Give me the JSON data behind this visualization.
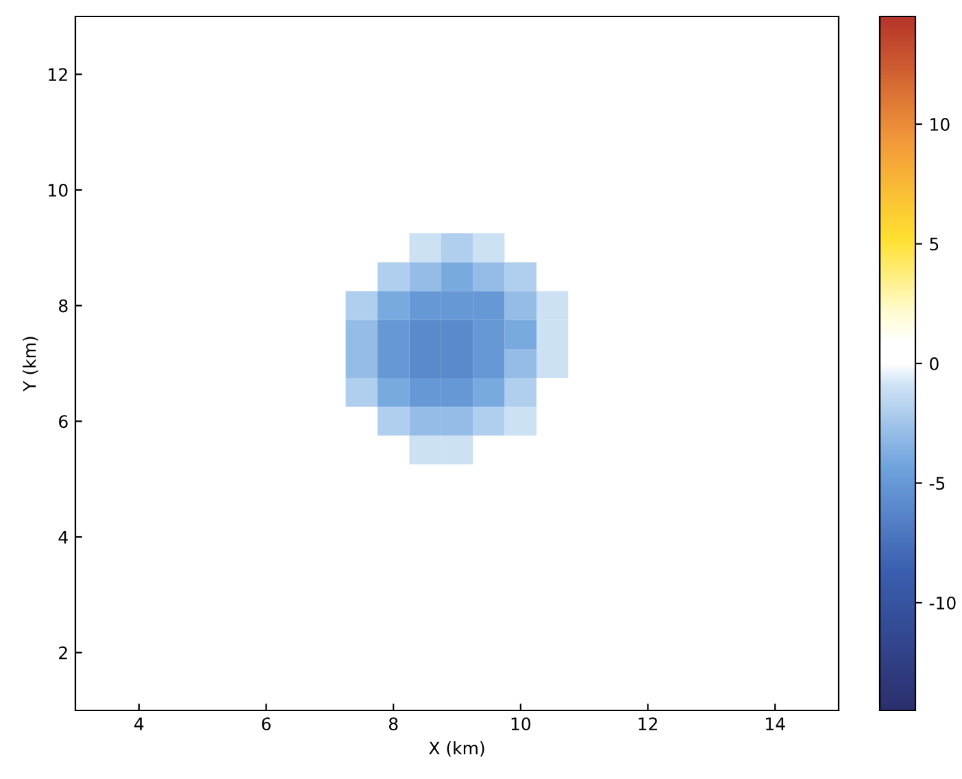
{
  "chart_data": {
    "type": "heatmap",
    "xlabel": "X (km)",
    "ylabel": "Y (km)",
    "clim": [
      -14.5,
      14.5
    ],
    "cticks": [
      -10,
      -5,
      0,
      5,
      10
    ],
    "categories": [
      null,
      null,
      "4",
      null,
      null,
      null,
      "6",
      null,
      null,
      null,
      "8",
      null,
      null,
      null,
      "10",
      null,
      null,
      null,
      "12",
      null,
      null,
      null,
      "14",
      null,
      null
    ],
    "y_categories": [
      null,
      null,
      "12",
      null,
      null,
      null,
      "10",
      null,
      null,
      null,
      "8",
      null,
      null,
      null,
      "6",
      null,
      null,
      null,
      "4",
      null,
      null,
      null,
      "2",
      null,
      null
    ],
    "cells": [
      [
        0,
        0,
        0,
        0,
        0,
        0,
        0,
        0,
        0,
        0,
        0,
        0,
        0,
        0,
        0,
        0,
        0,
        0,
        0,
        0,
        0,
        0,
        0,
        0,
        0
      ],
      [
        0,
        0,
        0,
        0,
        0,
        0,
        0,
        0,
        0,
        0,
        0,
        0,
        0,
        0,
        0,
        0,
        0,
        0,
        0,
        0,
        0,
        0,
        0,
        0,
        0
      ],
      [
        0,
        0,
        0,
        0,
        0,
        0,
        0,
        0,
        0,
        0,
        0,
        0,
        0,
        0,
        0,
        0,
        0,
        0,
        0,
        0,
        0,
        0,
        0,
        0,
        0
      ],
      [
        0,
        0,
        0,
        0,
        0,
        0,
        0,
        0,
        0,
        0,
        0,
        0,
        0,
        0,
        0,
        0,
        0,
        0,
        0,
        0,
        0,
        0,
        0,
        0,
        0
      ],
      [
        0,
        0,
        0,
        0,
        0,
        0,
        0,
        0,
        0,
        0,
        0,
        0,
        0,
        0,
        0,
        0,
        0,
        0,
        0,
        0,
        0,
        0,
        0,
        0,
        0
      ],
      [
        0,
        0,
        0,
        0,
        0,
        0,
        0,
        0,
        0,
        0,
        0,
        0,
        0,
        0,
        0,
        0,
        0,
        0,
        0,
        0,
        0,
        0,
        0,
        0,
        0
      ],
      [
        0,
        0,
        0,
        0,
        0,
        0,
        0,
        0,
        0,
        0,
        0,
        0,
        0,
        0,
        0,
        0,
        0,
        0,
        0,
        0,
        0,
        0,
        0,
        0,
        0
      ],
      [
        0,
        0,
        0,
        0,
        0,
        0,
        0,
        0,
        0,
        0,
        0,
        0,
        0,
        0,
        0,
        0,
        0,
        0,
        0,
        0,
        0,
        0,
        0,
        0,
        0
      ],
      [
        0,
        0,
        0,
        0,
        0,
        0,
        0,
        0,
        0,
        0,
        0,
        -1,
        -2,
        -1,
        0,
        0,
        0,
        0,
        0,
        0,
        0,
        0,
        0,
        0,
        0
      ],
      [
        0,
        0,
        0,
        0,
        0,
        0,
        0,
        0,
        0,
        0,
        -2,
        -3,
        -4,
        -3,
        -2,
        0,
        0,
        0,
        0,
        0,
        0,
        0,
        0,
        0,
        0
      ],
      [
        0,
        0,
        0,
        0,
        0,
        0,
        0,
        0,
        0,
        -2,
        -4,
        -5,
        -5,
        -5,
        -3,
        -1,
        0,
        0,
        0,
        0,
        0,
        0,
        0,
        0,
        0
      ],
      [
        0,
        0,
        0,
        0,
        0,
        0,
        0,
        0,
        0,
        -3,
        -5,
        -6,
        -6,
        -5,
        -4,
        -1,
        0,
        0,
        0,
        0,
        0,
        0,
        0,
        0,
        0
      ],
      [
        0,
        0,
        0,
        0,
        0,
        0,
        0,
        0,
        0,
        -3,
        -5,
        -6,
        -6,
        -5,
        -3,
        -1,
        0,
        0,
        0,
        0,
        0,
        0,
        0,
        0,
        0
      ],
      [
        0,
        0,
        0,
        0,
        0,
        0,
        0,
        0,
        0,
        -2,
        -4,
        -5,
        -5,
        -4,
        -2,
        0,
        0,
        0,
        0,
        0,
        0,
        0,
        0,
        0,
        0
      ],
      [
        0,
        0,
        0,
        0,
        0,
        0,
        0,
        0,
        0,
        0,
        -2,
        -3,
        -3,
        -2,
        -1,
        0,
        0,
        0,
        0,
        0,
        0,
        0,
        0,
        0,
        0
      ],
      [
        0,
        0,
        0,
        0,
        0,
        0,
        0,
        0,
        0,
        0,
        0,
        -1,
        -1,
        0,
        0,
        0,
        0,
        0,
        0,
        0,
        0,
        0,
        0,
        0,
        0
      ],
      [
        0,
        0,
        0,
        0,
        0,
        0,
        0,
        0,
        0,
        0,
        0,
        0,
        0,
        0,
        0,
        0,
        0,
        0,
        0,
        0,
        0,
        0,
        0,
        0,
        0
      ],
      [
        0,
        0,
        0,
        0,
        0,
        0,
        0,
        0,
        0,
        0,
        0,
        0,
        0,
        0,
        0,
        0,
        0,
        0,
        0,
        0,
        0,
        0,
        0,
        0,
        0
      ],
      [
        0,
        0,
        0,
        0,
        0,
        0,
        0,
        0,
        0,
        0,
        0,
        0,
        0,
        0,
        0,
        0,
        0,
        0,
        0,
        0,
        0,
        0,
        0,
        0,
        0
      ],
      [
        0,
        0,
        0,
        0,
        0,
        0,
        0,
        0,
        0,
        0,
        0,
        0,
        0,
        0,
        0,
        0,
        0,
        0,
        0,
        0,
        0,
        0,
        0,
        0,
        0
      ],
      [
        0,
        0,
        0,
        0,
        0,
        0,
        0,
        0,
        0,
        0,
        0,
        0,
        0,
        0,
        0,
        0,
        0,
        0,
        0,
        0,
        0,
        0,
        0,
        0,
        0
      ],
      [
        0,
        0,
        0,
        0,
        0,
        0,
        0,
        0,
        0,
        0,
        0,
        0,
        0,
        0,
        0,
        0,
        0,
        0,
        0,
        0,
        0,
        0,
        0,
        0,
        0
      ],
      [
        0,
        0,
        0,
        0,
        0,
        0,
        0,
        0,
        0,
        0,
        0,
        0,
        0,
        0,
        0,
        0,
        0,
        0,
        0,
        0,
        0,
        0,
        0,
        0,
        0
      ],
      [
        0,
        0,
        0,
        0,
        0,
        0,
        0,
        0,
        0,
        0,
        0,
        0,
        0,
        0,
        0,
        0,
        0,
        0,
        0,
        0,
        0,
        0,
        0,
        0,
        0
      ],
      [
        0,
        0,
        0,
        0,
        0,
        0,
        0,
        0,
        0,
        0,
        0,
        0,
        0,
        0,
        0,
        0,
        0,
        0,
        0,
        0,
        0,
        0,
        0,
        0,
        0
      ]
    ]
  }
}
